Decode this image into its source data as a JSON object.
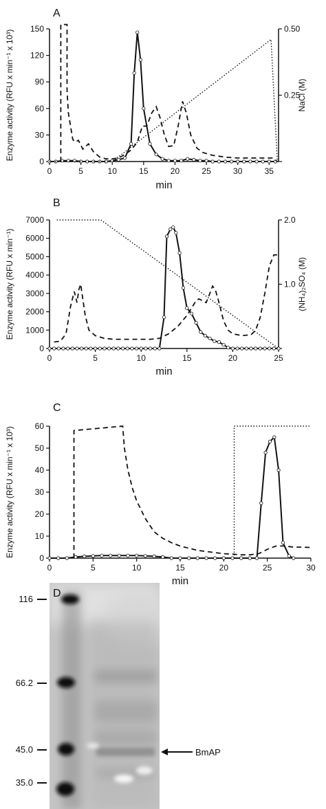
{
  "figure": {
    "background": "#ffffff",
    "ink": "#111111"
  },
  "chart_data": [
    {
      "panel": "A",
      "type": "line",
      "xlabel": "min",
      "ylabel": "Enzyme activity (RFU x min⁻¹ x 10³)",
      "y2label": "NaCl (M)",
      "xlim": [
        0,
        36.5
      ],
      "ylim": [
        0,
        150
      ],
      "y2lim": [
        0,
        0.5
      ],
      "xticks": [
        "0",
        "5",
        "10",
        "15",
        "20",
        "25",
        "30",
        "35"
      ],
      "yticks": [
        "0",
        "30",
        "60",
        "90",
        "120",
        "150"
      ],
      "y2ticks": [
        "0.25",
        "0.50"
      ],
      "y2tick_values": [
        0.25,
        0.5
      ],
      "series": [
        {
          "style": "solid",
          "markers": true,
          "x": [
            0,
            1,
            2,
            3,
            4,
            5,
            6,
            7,
            8,
            9,
            10,
            11,
            12,
            13,
            13.5,
            14,
            14.5,
            15,
            16,
            17,
            18,
            19,
            20,
            21,
            22,
            23,
            24,
            25,
            26,
            27,
            28,
            29,
            30,
            31,
            32,
            33,
            34,
            35,
            36
          ],
          "y": [
            0,
            0,
            1,
            1,
            1,
            0,
            0,
            0,
            0,
            0,
            1,
            2,
            4,
            20,
            100,
            146,
            115,
            60,
            20,
            8,
            3,
            1,
            1,
            1,
            3,
            2,
            1,
            1,
            0,
            0,
            0,
            0,
            0,
            0,
            0,
            0,
            0,
            0,
            0
          ]
        },
        {
          "style": "dashed",
          "markers": false,
          "x": [
            1.8,
            1.8,
            1.8,
            2.8,
            2.8,
            3.0,
            3.4,
            3.7,
            4.1,
            4.6,
            5.3,
            6.2,
            7.0,
            8,
            9,
            10,
            11,
            12,
            13,
            14,
            14.8,
            15.5,
            16.3,
            17,
            17.6,
            18.3,
            19,
            19.8,
            20.5,
            21.2,
            21.8,
            22.5,
            23.5,
            24.5,
            26,
            28,
            30,
            32,
            34,
            35.5,
            36.3
          ],
          "y": [
            0,
            80,
            155,
            155,
            80,
            55,
            38,
            25,
            22,
            24,
            14,
            20,
            11,
            5,
            3,
            3,
            4,
            8,
            13,
            22,
            40,
            40,
            55,
            62,
            50,
            30,
            17,
            18,
            40,
            68,
            55,
            30,
            15,
            10,
            7,
            5,
            4,
            4,
            4,
            4,
            0
          ]
        },
        {
          "style": "dotted",
          "axis": "right",
          "x": [
            0,
            10,
            35.3,
            36.3
          ],
          "y": [
            0,
            0,
            0.46,
            0
          ]
        }
      ]
    },
    {
      "panel": "B",
      "type": "line",
      "xlabel": "min",
      "ylabel": "Enzyme activity (RFU x min⁻¹)",
      "y2label": "(NH₄)₂SO₄ (M)",
      "xlim": [
        0,
        25
      ],
      "ylim": [
        0,
        7000
      ],
      "y2lim": [
        0,
        2.0
      ],
      "xticks": [
        "0",
        "5",
        "10",
        "15",
        "20",
        "25"
      ],
      "yticks": [
        "0",
        "1000",
        "2000",
        "3000",
        "4000",
        "5000",
        "6000",
        "7000"
      ],
      "y2ticks": [
        "1.0",
        "2.0"
      ],
      "y2tick_values": [
        1.0,
        2.0
      ],
      "series": [
        {
          "style": "solid",
          "markers": true,
          "x": [
            0,
            0.5,
            1,
            1.5,
            2,
            2.5,
            3,
            3.5,
            4,
            4.5,
            5,
            5.5,
            6,
            6.5,
            7,
            7.5,
            8,
            8.5,
            9,
            9.5,
            10,
            10.5,
            11,
            11.5,
            12,
            12.5,
            12.8,
            13.2,
            13.5,
            13.8,
            14.2,
            14.6,
            15,
            15.5,
            16,
            16.5,
            17,
            17.5,
            18,
            18.5,
            19,
            19.5,
            20,
            20.5,
            21,
            21.5,
            22,
            22.5,
            23,
            23.5,
            24,
            24.5,
            25
          ],
          "y": [
            0,
            0,
            0,
            0,
            0,
            0,
            0,
            0,
            0,
            0,
            0,
            0,
            0,
            0,
            0,
            0,
            0,
            0,
            0,
            0,
            0,
            0,
            0,
            0,
            0,
            1700,
            6100,
            6500,
            6600,
            6300,
            5200,
            3300,
            2200,
            1900,
            1400,
            900,
            700,
            550,
            400,
            350,
            200,
            50,
            0,
            0,
            0,
            0,
            0,
            0,
            0,
            0,
            0,
            0,
            0
          ]
        },
        {
          "style": "dashed",
          "markers": false,
          "x": [
            0.5,
            1.2,
            1.8,
            2.3,
            2.7,
            3.0,
            3.2,
            3.4,
            3.6,
            3.9,
            4.3,
            5,
            6,
            7,
            8,
            9,
            10,
            11,
            12,
            13,
            14,
            14.5,
            15,
            15.5,
            16,
            16.3,
            16.7,
            17.1,
            17.5,
            17.8,
            18.1,
            18.5,
            19,
            19.5,
            20,
            21,
            22,
            22.5,
            23,
            23.5,
            24,
            24.5,
            25
          ],
          "y": [
            350,
            400,
            800,
            2300,
            3100,
            2500,
            3200,
            3500,
            2800,
            1800,
            1000,
            700,
            550,
            500,
            500,
            500,
            500,
            500,
            550,
            800,
            1200,
            1500,
            1800,
            2200,
            2600,
            2700,
            2600,
            2500,
            3000,
            3400,
            3200,
            2500,
            1500,
            1000,
            800,
            700,
            750,
            1000,
            1700,
            3000,
            4500,
            5100,
            5100
          ]
        },
        {
          "style": "dotted",
          "axis": "right",
          "x": [
            0.8,
            5.6,
            25
          ],
          "y": [
            2.0,
            2.0,
            0
          ]
        }
      ]
    },
    {
      "panel": "C",
      "type": "line",
      "xlabel": "min",
      "ylabel": "Enzyme activity (RFU x min⁻¹ x 10³)",
      "xlim": [
        0,
        30
      ],
      "ylim": [
        0,
        60
      ],
      "xticks": [
        "0",
        "5",
        "10",
        "15",
        "20",
        "25",
        "30"
      ],
      "yticks": [
        "0",
        "10",
        "20",
        "30",
        "40",
        "50",
        "60"
      ],
      "series": [
        {
          "style": "solid",
          "markers": true,
          "x": [
            0,
            1,
            2,
            3,
            4,
            5,
            6,
            7,
            8,
            9,
            10,
            11,
            12,
            13,
            14,
            15,
            16,
            17,
            18,
            19,
            20,
            21,
            22,
            23,
            23.8,
            24.3,
            24.8,
            25.3,
            25.8,
            26.3,
            26.8,
            27.5,
            28
          ],
          "y": [
            0,
            0,
            0,
            0.5,
            0.8,
            1,
            1.2,
            1.2,
            1.2,
            1.2,
            1.2,
            1,
            0.8,
            0.5,
            0,
            0,
            0,
            0,
            0,
            0,
            0,
            0,
            0,
            0,
            0,
            25,
            48,
            53,
            55,
            40,
            7,
            1,
            0
          ]
        },
        {
          "style": "dashed",
          "markers": false,
          "x": [
            2.8,
            2.8,
            8.4,
            8.6,
            9,
            9.5,
            10,
            10.5,
            11,
            11.5,
            12,
            13,
            14,
            15,
            16,
            17,
            18,
            19,
            20,
            21,
            22,
            23,
            24,
            25,
            26,
            27,
            28,
            29,
            30
          ],
          "y": [
            0,
            58,
            60,
            50,
            40,
            32,
            26,
            22,
            18,
            15,
            12,
            9,
            7,
            5.5,
            4.5,
            3.5,
            3,
            2.5,
            2,
            1.8,
            1.5,
            1.5,
            2,
            4,
            5.5,
            5.5,
            5,
            5,
            4.8
          ]
        },
        {
          "style": "dotted",
          "axis": "right",
          "x": [
            21.2,
            21.2,
            30
          ],
          "y": [
            0,
            60,
            60
          ]
        }
      ]
    }
  ],
  "panels": {
    "A": {
      "label": "A"
    },
    "B": {
      "label": "B"
    },
    "C": {
      "label": "C"
    },
    "D": {
      "label": "D",
      "markers": [
        "116",
        "66.2",
        "45.0",
        "35.0"
      ],
      "annotation": "BmAP"
    }
  }
}
